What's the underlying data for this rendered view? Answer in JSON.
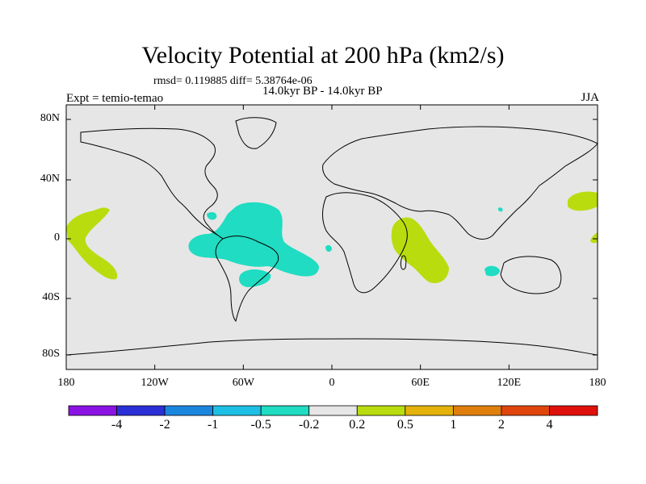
{
  "title": "Velocity Potential at 200 hPa (km2/s)",
  "stats": "rmsd= 0.119885 diff= 5.38764e-06",
  "subtitle": "14.0kyr BP - 14.0kyr BP",
  "experiment": "Expt = temio-temao",
  "season": "JJA",
  "lat_labels": [
    "80N",
    "40N",
    "0",
    "40S",
    "80S"
  ],
  "lon_labels": [
    "180",
    "120W",
    "60W",
    "0",
    "60E",
    "120E",
    "180"
  ],
  "colorbar": {
    "labels": [
      "-4",
      "-2",
      "-1",
      "-0.5",
      "-0.2",
      "0.2",
      "0.5",
      "1",
      "2",
      "4"
    ],
    "colors": [
      "#8a13e4",
      "#2b2fd6",
      "#1b86de",
      "#1dbfe4",
      "#1fdcc2",
      "#e6e6e6",
      "#b9dc0f",
      "#e3b30c",
      "#e07e0c",
      "#e0450c",
      "#e0100c"
    ]
  },
  "map": {
    "background_color": "#e6e6e6",
    "negative_color": "#1fdcc2",
    "positive_color": "#b9dc0f"
  }
}
